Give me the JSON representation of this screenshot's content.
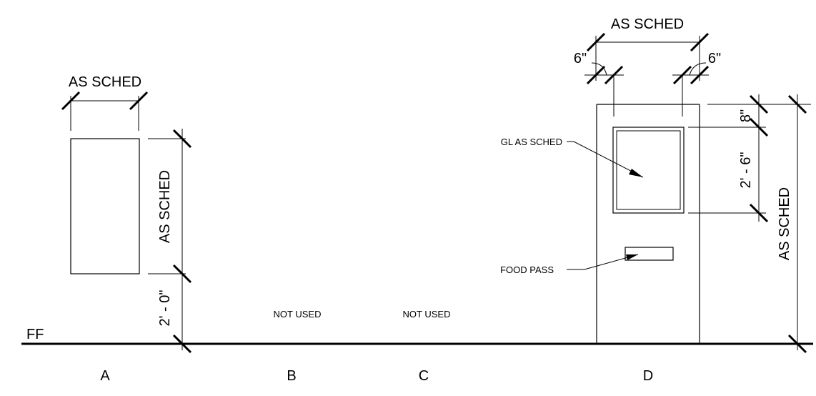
{
  "labels": {
    "ff": "FF",
    "elevations": [
      "A",
      "B",
      "C",
      "D"
    ],
    "not_used_b": "NOT USED",
    "not_used_c": "NOT USED"
  },
  "elevation_a": {
    "width_dim": "AS SCHED",
    "height_dim": "AS SCHED",
    "sill_dim": "2' - 0\""
  },
  "elevation_d": {
    "width_dim": "AS SCHED",
    "left_margin": "6\"",
    "right_margin": "6\"",
    "top_dim": "8\"",
    "glass_height_dim": "2' - 6\"",
    "overall_height_dim": "AS SCHED",
    "glass_note": "GL AS SCHED",
    "food_pass_note": "FOOD PASS"
  }
}
